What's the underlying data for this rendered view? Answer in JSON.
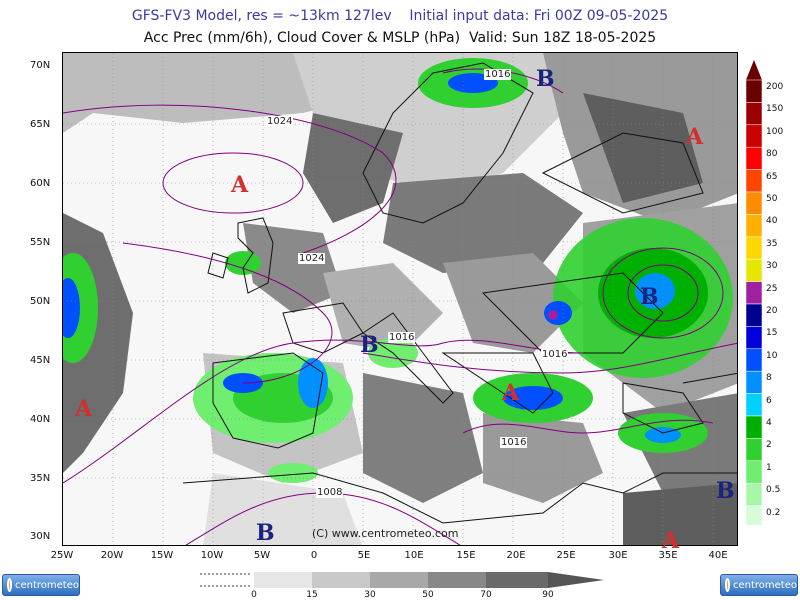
{
  "header": {
    "line1": "GFS-FV3 Model, res = ~13km 127lev    Initial input data: Fri 00Z 09-05-2025",
    "line2": "Acc Prec (mm/6h), Cloud Cover & MSLP (hPa)  Valid: Sun 18Z 18-05-2025"
  },
  "map": {
    "lat_labels": [
      "70N",
      "65N",
      "60N",
      "55N",
      "50N",
      "45N",
      "40N",
      "35N",
      "30N"
    ],
    "lon_labels": [
      "25W",
      "20W",
      "15W",
      "10W",
      "5W",
      "0",
      "5E",
      "10E",
      "15E",
      "20E",
      "25E",
      "30E",
      "35E",
      "40E"
    ],
    "copyright": "(C) www.centrometeo.com",
    "pressure_centers": [
      {
        "type": "B",
        "color": "#1a237e"
      },
      {
        "type": "A",
        "color": "#d32f2f"
      },
      {
        "type": "A",
        "color": "#d32f2f"
      },
      {
        "type": "B",
        "color": "#1a237e"
      },
      {
        "type": "B",
        "color": "#1a237e"
      },
      {
        "type": "A",
        "color": "#d32f2f"
      },
      {
        "type": "A",
        "color": "#d32f2f"
      },
      {
        "type": "B",
        "color": "#1a237e"
      },
      {
        "type": "B",
        "color": "#1a237e"
      },
      {
        "type": "A",
        "color": "#d32f2f"
      }
    ],
    "isobar_labels": [
      "1016",
      "1024",
      "1024",
      "1016",
      "1016",
      "1016",
      "1008"
    ]
  },
  "precip_scale": {
    "labels": [
      "200",
      "150",
      "100",
      "80",
      "65",
      "50",
      "40",
      "35",
      "30",
      "25",
      "20",
      "15",
      "10",
      "8",
      "6",
      "4",
      "2",
      "1",
      "0.5",
      "0.2"
    ],
    "colors": [
      "#6b0000",
      "#9a0000",
      "#cc0000",
      "#ff0000",
      "#ff4500",
      "#ff8c00",
      "#ffb000",
      "#ffd700",
      "#e6e600",
      "#a020a0",
      "#000090",
      "#0000dd",
      "#0050ff",
      "#0090ff",
      "#00d0ff",
      "#00b000",
      "#30d030",
      "#70ee70",
      "#a8f7a8",
      "#d8fcd8"
    ]
  },
  "cloud_scale": {
    "labels": [
      "0",
      "15",
      "30",
      "50",
      "70",
      "90"
    ],
    "colors": [
      "#ffffff",
      "#e6e6e6",
      "#c8c8c8",
      "#a8a8a8",
      "#888888",
      "#6a6a6a"
    ]
  },
  "logos": {
    "left": "centrometeo",
    "right": "centrometeo"
  }
}
